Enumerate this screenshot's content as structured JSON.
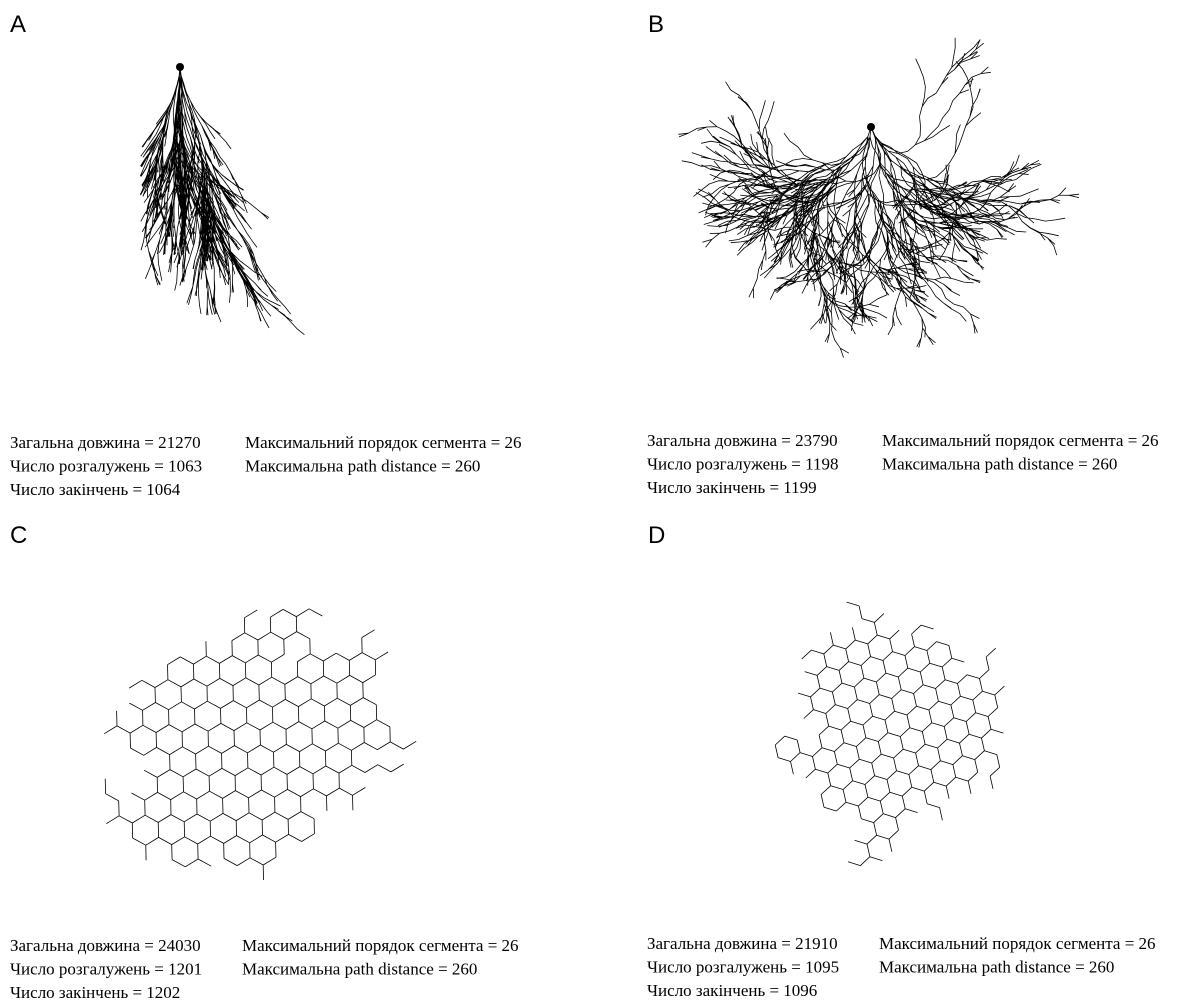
{
  "panels": [
    {
      "label": "A",
      "stats_left": [
        "Загальна довжина = 21270",
        "Число розгалужень = 1063",
        "Число закінчень = 1064"
      ],
      "stats_right": [
        "Максимальний порядок сегмента = 26",
        "Максимальна path distance = 260"
      ]
    },
    {
      "label": "B",
      "stats_left": [
        "Загальна довжина = 23790",
        "Число розгалужень = 1198",
        "Число закінчень = 1199"
      ],
      "stats_right": [
        "Максимальний порядок сегмента = 26",
        "Максимальна path distance = 260"
      ]
    },
    {
      "label": "C",
      "stats_left": [
        "Загальна довжина = 24030",
        "Число розгалужень = 1201",
        "Число закінчень = 1202"
      ],
      "stats_right": [
        "Максимальний порядок сегмента = 26",
        "Максимальна path distance = 260"
      ]
    },
    {
      "label": "D",
      "stats_left": [
        "Загальна довжина = 21910",
        "Число розгалужень = 1095",
        "Число закінчень = 1096"
      ],
      "stats_right": [
        "Максимальний порядок сегмента = 26",
        "Максимальна path distance = 260"
      ]
    }
  ]
}
